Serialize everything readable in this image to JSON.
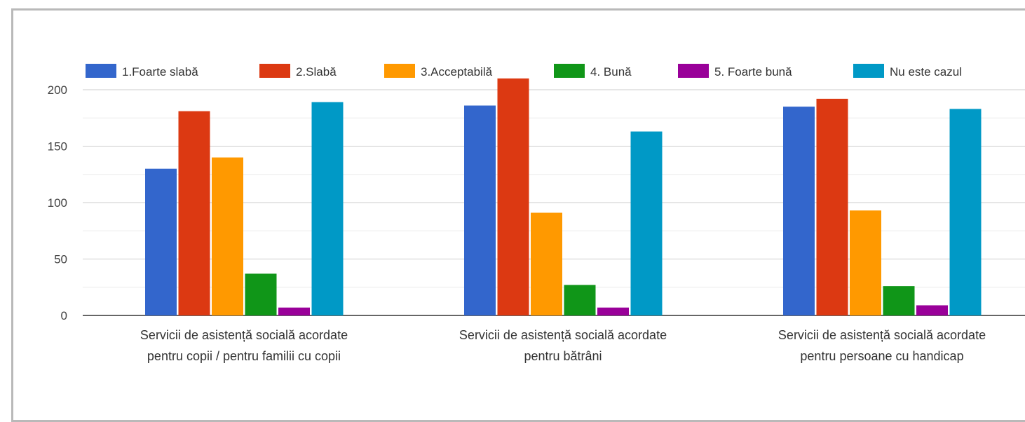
{
  "chart_data": {
    "type": "bar",
    "categories": [
      [
        "Servicii de asistență socială acordate",
        "pentru copii / pentru familii cu copii"
      ],
      [
        "Servicii de asistență socială acordate",
        "pentru bătrâni"
      ],
      [
        "Servicii de asistență socială acordate",
        "pentru persoane cu handicap"
      ]
    ],
    "series": [
      {
        "name": "1.Foarte slabă",
        "color": "#3366cc",
        "values": [
          130,
          186,
          185
        ]
      },
      {
        "name": "2.Slabă",
        "color": "#dc3912",
        "values": [
          181,
          210,
          192
        ]
      },
      {
        "name": "3.Acceptabilă",
        "color": "#ff9900",
        "values": [
          140,
          91,
          93
        ]
      },
      {
        "name": "4. Bună",
        "color": "#109618",
        "values": [
          37,
          27,
          26
        ]
      },
      {
        "name": "5. Foarte bună",
        "color": "#990099",
        "values": [
          7,
          7,
          9
        ]
      },
      {
        "name": "Nu este cazul",
        "color": "#0099c6",
        "values": [
          189,
          163,
          183
        ]
      }
    ],
    "yticks": [
      "0",
      "50",
      "100",
      "150",
      "200"
    ],
    "ylim": [
      0,
      200
    ],
    "grid": true,
    "legend_position": "top"
  }
}
